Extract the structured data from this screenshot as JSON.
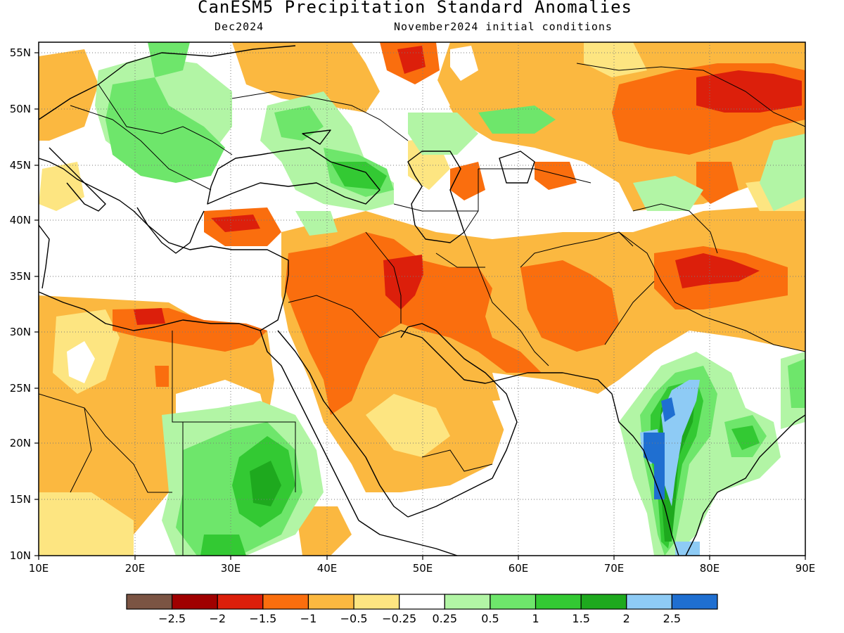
{
  "title": "CanESM5 Precipitation Standard Anomalies",
  "subtitle_left": "Dec2024",
  "subtitle_right": "November2024 initial conditions",
  "x_ticks": [
    "10E",
    "20E",
    "30E",
    "40E",
    "50E",
    "60E",
    "70E",
    "80E",
    "90E"
  ],
  "y_ticks": [
    "55N",
    "50N",
    "45N",
    "40N",
    "35N",
    "30N",
    "25N",
    "20N",
    "15N",
    "10N"
  ],
  "colorbar": {
    "colors": [
      "#7b5443",
      "#a00000",
      "#dc1f0b",
      "#fa6e0e",
      "#fbb840",
      "#fde581",
      "#ffffff",
      "#b2f5a5",
      "#6ee66b",
      "#33c933",
      "#1ea91e",
      "#8ecbf5",
      "#1f6fd1"
    ],
    "labels": [
      "−2.5",
      "−2",
      "−1.5",
      "−1",
      "−0.5",
      "−0.25",
      "0.25",
      "0.5",
      "1",
      "1.5",
      "2",
      "2.5"
    ]
  },
  "map": {
    "lon_range": [
      10,
      90
    ],
    "lat_range": [
      10,
      56
    ],
    "projection": "equirectangular",
    "grid": "dotted"
  }
}
